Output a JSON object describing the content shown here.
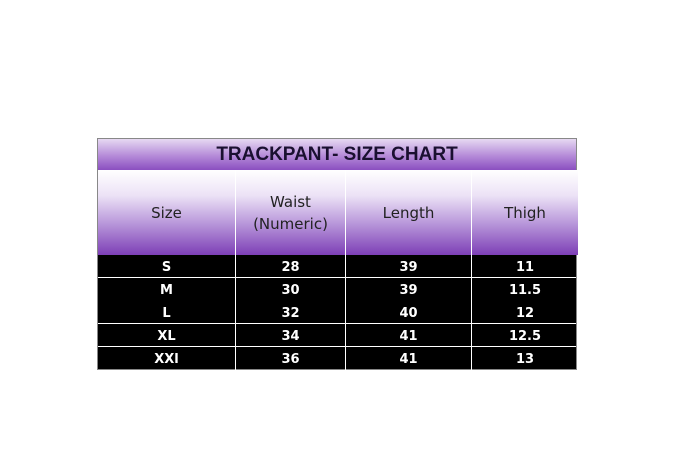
{
  "title": "TRACKPANT- SIZE CHART",
  "headers": [
    "Size",
    "Waist\n(Numeric)",
    "Length",
    "Thigh"
  ],
  "rows": [
    [
      "S",
      "28",
      "39",
      "11"
    ],
    [
      "M",
      "30",
      "39",
      "11.5"
    ],
    [
      "L",
      "32",
      "40",
      "12"
    ],
    [
      "XL",
      "34",
      "41",
      "12.5"
    ],
    [
      "XXl",
      "36",
      "41",
      "13"
    ]
  ],
  "colors": {
    "header_purple": "#7d3fb6",
    "body_bg": "#000000",
    "body_text": "#ffffff"
  }
}
